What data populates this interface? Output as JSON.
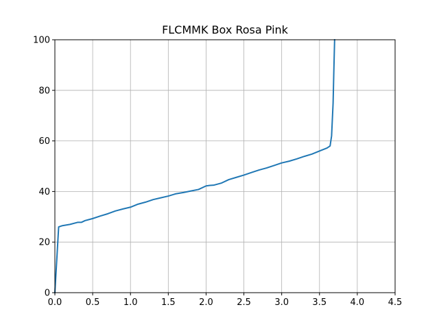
{
  "chart_data": {
    "type": "line",
    "title": "FLCMMK Box Rosa Pink",
    "xlabel": "",
    "ylabel": "",
    "xlim": [
      0.0,
      4.5
    ],
    "ylim": [
      0,
      100
    ],
    "xticks": [
      0.0,
      0.5,
      1.0,
      1.5,
      2.0,
      2.5,
      3.0,
      3.5,
      4.0,
      4.5
    ],
    "xtick_labels": [
      "0.0",
      "0.5",
      "1.0",
      "1.5",
      "2.0",
      "2.5",
      "3.0",
      "3.5",
      "4.0",
      "4.5"
    ],
    "yticks": [
      0,
      20,
      40,
      60,
      80,
      100
    ],
    "ytick_labels": [
      "0",
      "20",
      "40",
      "60",
      "80",
      "100"
    ],
    "grid": true,
    "line_color": "#1f77b4",
    "series": [
      {
        "x": [
          0.0,
          0.05,
          0.1,
          0.2,
          0.3,
          0.35,
          0.4,
          0.5,
          0.6,
          0.7,
          0.8,
          0.9,
          1.0,
          1.1,
          1.2,
          1.3,
          1.4,
          1.5,
          1.6,
          1.7,
          1.8,
          1.9,
          2.0,
          2.05,
          2.1,
          2.2,
          2.3,
          2.4,
          2.5,
          2.6,
          2.7,
          2.8,
          2.9,
          3.0,
          3.1,
          3.2,
          3.3,
          3.4,
          3.5,
          3.6,
          3.64,
          3.66,
          3.68,
          3.69,
          3.7
        ],
        "y": [
          0,
          26.0,
          26.5,
          27.0,
          27.8,
          27.8,
          28.5,
          29.3,
          30.3,
          31.2,
          32.3,
          33.1,
          33.8,
          35.0,
          35.8,
          36.8,
          37.5,
          38.2,
          39.1,
          39.6,
          40.2,
          40.8,
          42.2,
          42.4,
          42.5,
          43.3,
          44.7,
          45.6,
          46.5,
          47.5,
          48.5,
          49.3,
          50.3,
          51.3,
          52.0,
          52.9,
          53.9,
          54.8,
          56.0,
          57.2,
          58.0,
          62.0,
          75.0,
          88.0,
          100.0
        ]
      }
    ]
  }
}
